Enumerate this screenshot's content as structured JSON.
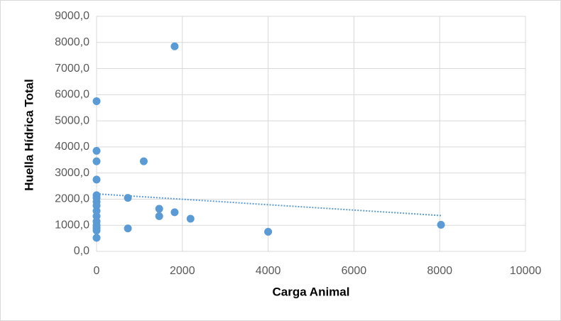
{
  "chart_data": {
    "type": "scatter",
    "x_label": "Carga Animal",
    "y_label": "Huella Hídrica Total",
    "series": [
      {
        "color": "#5b9bd5",
        "x": [
          1820,
          0,
          0,
          0,
          1100,
          0,
          0,
          0,
          0,
          0,
          0,
          0,
          0,
          0,
          0,
          0,
          0,
          730,
          1460,
          1460,
          1820,
          2190,
          4000,
          730,
          8030
        ],
        "values": [
          7850,
          5750,
          3850,
          3450,
          3450,
          2750,
          2150,
          2050,
          1900,
          1750,
          1550,
          1350,
          1150,
          1000,
          900,
          800,
          520,
          2050,
          1630,
          1350,
          1500,
          1250,
          750,
          880,
          1020
        ]
      }
    ],
    "xlim": [
      0,
      10000
    ],
    "xticks": [
      0,
      2000,
      4000,
      6000,
      8000,
      10000
    ],
    "ylim": [
      0,
      9000
    ],
    "yticks": [
      {
        "value": 0,
        "label": "0,0"
      },
      {
        "value": 1000,
        "label": "1000,0"
      },
      {
        "value": 2000,
        "label": "2000,0"
      },
      {
        "value": 3000,
        "label": "3000,0"
      },
      {
        "value": 4000,
        "label": "4000,0"
      },
      {
        "value": 5000,
        "label": "5000,0"
      },
      {
        "value": 6000,
        "label": "6000,0"
      },
      {
        "value": 7000,
        "label": "7000,0"
      },
      {
        "value": 8000,
        "label": "8000,0"
      },
      {
        "value": 9000,
        "label": "9000,0"
      }
    ],
    "grid": true,
    "trendline": "linear"
  }
}
